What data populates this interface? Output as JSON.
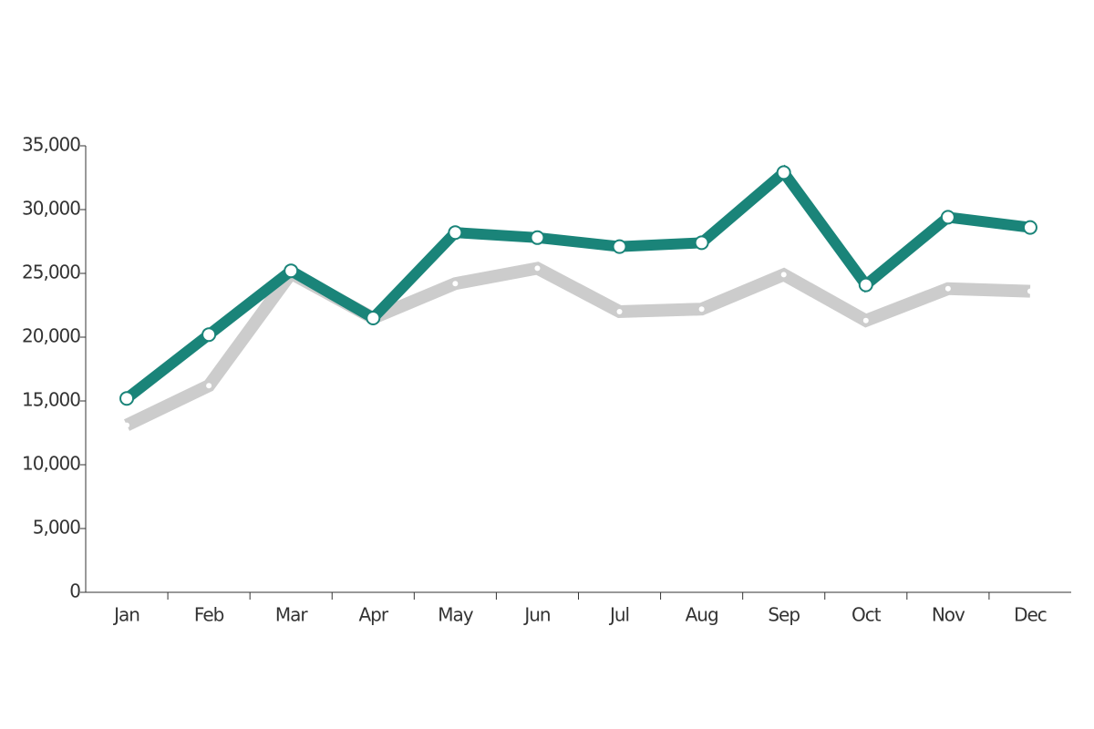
{
  "chart_data": {
    "type": "line",
    "categories": [
      "Jan",
      "Feb",
      "Mar",
      "Apr",
      "May",
      "Jun",
      "Jul",
      "Aug",
      "Sep",
      "Oct",
      "Nov",
      "Dec"
    ],
    "series": [
      {
        "color": "#cccccc",
        "values": [
          13100,
          16200,
          25000,
          21500,
          24200,
          25400,
          22000,
          22200,
          24900,
          21300,
          23800,
          23600
        ]
      },
      {
        "color": "#1a8479",
        "values": [
          15200,
          20200,
          25200,
          21500,
          28200,
          27800,
          27100,
          27400,
          32900,
          24100,
          29400,
          28600
        ]
      }
    ],
    "ylim": [
      0,
      35000
    ],
    "yticks": [
      0,
      {
        "value": 5000,
        "label": "5,000"
      },
      {
        "value": 10000,
        "label": "10,000"
      },
      {
        "value": 15000,
        "label": "15,000"
      },
      {
        "value": 20000,
        "label": "20,000"
      },
      {
        "value": 25000,
        "label": "25,000"
      },
      {
        "value": 30000,
        "label": "30,000"
      },
      {
        "value": 35000,
        "label": "35,000"
      }
    ],
    "grid": false
  }
}
